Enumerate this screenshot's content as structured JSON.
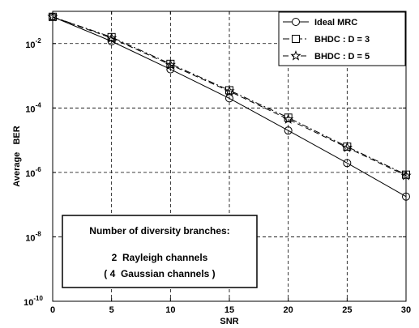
{
  "chart_data": {
    "type": "line",
    "title": "",
    "xlabel": "SNR",
    "ylabel": "Average   BER",
    "xlim": [
      0,
      30
    ],
    "ylim_log10": [
      -10,
      -1
    ],
    "yscale": "log",
    "grid": true,
    "grid_style": "dashed",
    "legend_position": "top-right",
    "x_ticks": [
      "0",
      "5",
      "10",
      "15",
      "20",
      "25",
      "30"
    ],
    "y_ticks": [
      {
        "base": "10",
        "exp": "-2"
      },
      {
        "base": "10",
        "exp": "-4"
      },
      {
        "base": "10",
        "exp": "-6"
      },
      {
        "base": "10",
        "exp": "-8"
      },
      {
        "base": "10",
        "exp": "-10"
      }
    ],
    "x": [
      0,
      5,
      10,
      15,
      20,
      25,
      30
    ],
    "series": [
      {
        "name": "Ideal  MRC",
        "marker": "circle",
        "dash": "solid",
        "log10_values": [
          -1.17,
          -1.93,
          -2.8,
          -3.7,
          -4.7,
          -5.71,
          -6.75
        ]
      },
      {
        "name": "BHDC :  D = 3",
        "marker": "square",
        "dash": "dashdot",
        "log10_values": [
          -1.17,
          -1.8,
          -2.63,
          -3.45,
          -4.3,
          -5.2,
          -6.07
        ]
      },
      {
        "name": "BHDC :  D = 5",
        "marker": "star",
        "dash": "dashed",
        "log10_values": [
          -1.17,
          -1.83,
          -2.66,
          -3.48,
          -4.35,
          -5.23,
          -6.1
        ]
      }
    ],
    "annotation": {
      "line1": "Number of diversity branches:",
      "line2": "2  Rayleigh channels",
      "line3": "( 4  Gaussian channels )"
    }
  }
}
